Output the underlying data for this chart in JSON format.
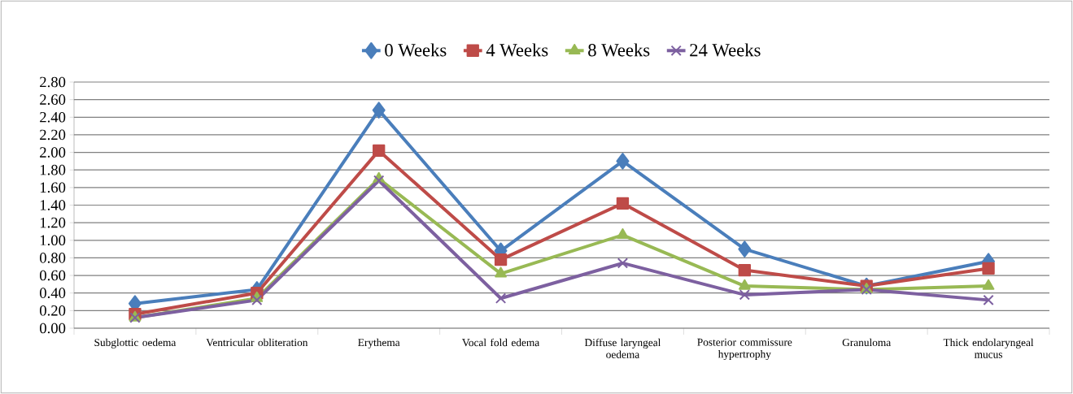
{
  "chart_data": {
    "type": "line",
    "categories": [
      "Subglottic oedema",
      "Ventricular obliteration",
      "Erythema",
      "Vocal fold edema",
      "Diffuse laryngeal oedema",
      "Posterior commissure hypertrophy",
      "Granuloma",
      "Thick endolaryngeal mucus"
    ],
    "series": [
      {
        "name": "0 Weeks",
        "color": "#4a7ebb",
        "marker": "diamond",
        "values": [
          0.28,
          0.44,
          2.48,
          0.88,
          1.9,
          0.9,
          0.48,
          0.76
        ]
      },
      {
        "name": "4 Weeks",
        "color": "#be4b48",
        "marker": "square",
        "values": [
          0.16,
          0.4,
          2.02,
          0.78,
          1.42,
          0.66,
          0.48,
          0.68
        ]
      },
      {
        "name": "8 Weeks",
        "color": "#98b954",
        "marker": "triangle",
        "values": [
          0.12,
          0.34,
          1.7,
          0.62,
          1.06,
          0.48,
          0.44,
          0.48
        ]
      },
      {
        "name": "24 Weeks",
        "color": "#7d60a0",
        "marker": "cross",
        "values": [
          0.12,
          0.32,
          1.68,
          0.34,
          0.74,
          0.38,
          0.44,
          0.32
        ]
      }
    ],
    "ylim": [
      0,
      2.8
    ],
    "yticks": [
      {
        "value": 0,
        "label": "0.00"
      },
      {
        "value": 0.2,
        "label": "0.20"
      },
      {
        "value": 0.4,
        "label": "0.40"
      },
      {
        "value": 0.6,
        "label": "0.60"
      },
      {
        "value": 0.8,
        "label": "0.80"
      },
      {
        "value": 1.0,
        "label": "1.00"
      },
      {
        "value": 1.2,
        "label": "1.20"
      },
      {
        "value": 1.4,
        "label": "1.40"
      },
      {
        "value": 1.6,
        "label": "1.60"
      },
      {
        "value": 1.8,
        "label": "1.80"
      },
      {
        "value": 2.0,
        "label": "2.00"
      },
      {
        "value": 2.2,
        "label": "2.20"
      },
      {
        "value": 2.4,
        "label": "2.40"
      },
      {
        "value": 2.6,
        "label": "2.60"
      },
      {
        "value": 2.8,
        "label": "2.80"
      }
    ],
    "grid": "y",
    "legend": "top",
    "line_style": "solid"
  }
}
